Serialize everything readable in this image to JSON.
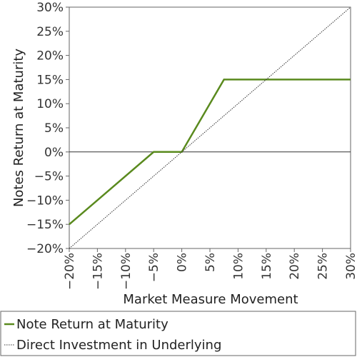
{
  "chart_data": {
    "type": "line",
    "title": "",
    "xlabel": "Market Measure Movement",
    "ylabel": "Notes Return at Maturity",
    "xlim": [
      -20,
      30
    ],
    "ylim": [
      -20,
      30
    ],
    "x_ticks": [
      -20,
      -15,
      -10,
      -5,
      0,
      5,
      10,
      15,
      20,
      25,
      30
    ],
    "y_ticks": [
      -20,
      -15,
      -10,
      -5,
      0,
      5,
      10,
      15,
      20,
      25,
      30
    ],
    "x_tick_labels": [
      "−20%",
      "−15%",
      "−10%",
      "−5%",
      "0%",
      "5%",
      "10%",
      "15%",
      "20%",
      "25%",
      "30%"
    ],
    "y_tick_labels": [
      "−20%",
      "−15%",
      "−10%",
      "−5%",
      "0%",
      "5%",
      "10%",
      "15%",
      "20%",
      "25%",
      "30%"
    ],
    "grid": false,
    "legend_position": "bottom",
    "series": [
      {
        "name": "Note Return at Maturity",
        "color": "#5a8a1e",
        "style": "solid",
        "points": [
          [
            -20,
            -15
          ],
          [
            -5,
            0
          ],
          [
            0,
            0
          ],
          [
            7.5,
            15
          ],
          [
            30,
            15
          ]
        ]
      },
      {
        "name": "Direct Investment in Underlying",
        "color": "#333333",
        "style": "dotted",
        "points": [
          [
            -20,
            -20
          ],
          [
            30,
            30
          ]
        ]
      }
    ]
  }
}
